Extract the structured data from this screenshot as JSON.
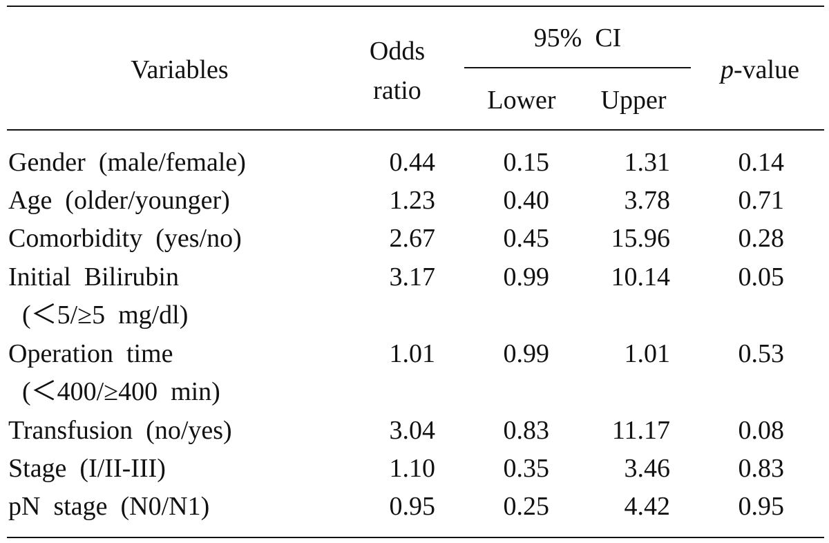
{
  "header": {
    "variables": "Variables",
    "odds_ratio_line1": "Odds",
    "odds_ratio_line2": "ratio",
    "ci": "95%  CI",
    "lower": "Lower",
    "upper": "Upper",
    "p_value_italic": "p",
    "p_value_rest": "-value"
  },
  "rows": [
    {
      "variable": "Gender  (male/female)",
      "variable_line2": "",
      "odds_ratio": "0.44",
      "lower": "0.15",
      "upper": "1.31",
      "p_value": "0.14"
    },
    {
      "variable": "Age  (older/younger)",
      "variable_line2": "",
      "odds_ratio": "1.23",
      "lower": "0.40",
      "upper": "3.78",
      "p_value": "0.71"
    },
    {
      "variable": "Comorbidity  (yes/no)",
      "variable_line2": "",
      "odds_ratio": "2.67",
      "lower": "0.45",
      "upper": "15.96",
      "p_value": "0.28"
    },
    {
      "variable": "Initial  Bilirubin",
      "variable_line2": "(＜5/≥5  mg/dl)",
      "odds_ratio": "3.17",
      "lower": "0.99",
      "upper": "10.14",
      "p_value": "0.05"
    },
    {
      "variable": "Operation  time",
      "variable_line2": "(＜400/≥400  min)",
      "odds_ratio": "1.01",
      "lower": "0.99",
      "upper": "1.01",
      "p_value": "0.53"
    },
    {
      "variable": "Transfusion  (no/yes)",
      "variable_line2": "",
      "odds_ratio": "3.04",
      "lower": "0.83",
      "upper": "11.17",
      "p_value": "0.08"
    },
    {
      "variable": "Stage  (I/II-III)",
      "variable_line2": "",
      "odds_ratio": "1.10",
      "lower": "0.35",
      "upper": "3.46",
      "p_value": "0.83"
    },
    {
      "variable": "pN  stage  (N0/N1)",
      "variable_line2": "",
      "odds_ratio": "0.95",
      "lower": "0.25",
      "upper": "4.42",
      "p_value": "0.95"
    }
  ]
}
